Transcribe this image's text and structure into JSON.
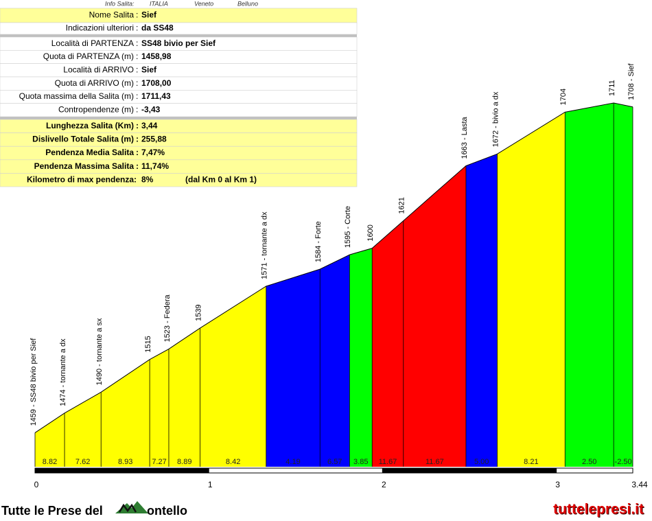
{
  "info_bar": [
    "Info Salita:",
    "ITALIA",
    "Veneto",
    "Belluno"
  ],
  "table": {
    "rows": [
      [
        "Nome Salita",
        ":",
        "Sief"
      ],
      [
        "Indicazioni ulteriori",
        ":",
        "da SS48"
      ],
      [
        "Località di PARTENZA",
        ":",
        "SS48 bivio per Sief"
      ],
      [
        "Quota di PARTENZA (m)",
        ":",
        "1458,98"
      ],
      [
        "Località di ARRIVO",
        ":",
        "Sief"
      ],
      [
        "Quota di ARRIVO (m)",
        ":",
        "1708,00"
      ],
      [
        "Quota massima della Salita (m)",
        ":",
        "1711,43"
      ],
      [
        "Contropendenze (m)",
        ":",
        "-3,43"
      ],
      [
        "Lunghezza Salita (Km)",
        ":",
        "3,44"
      ],
      [
        "Dislivello Totale Salita (m)",
        ":",
        "255,88"
      ],
      [
        "Pendenza Media Salita",
        ":",
        "7,47%"
      ],
      [
        "Pendenza Massima Salita",
        ":",
        "11,74%"
      ],
      [
        "Kilometro di max pendenza:",
        "8%",
        "(dal Km 0 al Km 1)"
      ]
    ]
  },
  "chart_data": {
    "type": "profile",
    "x": [
      0,
      0.17,
      0.38,
      0.66,
      0.77,
      0.95,
      1.33,
      1.64,
      1.81,
      1.94,
      2.12,
      2.48,
      2.66,
      3.05,
      3.33,
      3.44
    ],
    "values": [
      1459,
      1474,
      1490,
      1515,
      1523,
      1539,
      1571,
      1584,
      1595,
      1600,
      1621,
      1663,
      1672,
      1704,
      1711,
      1708
    ],
    "point_labels": [
      "1459 - SS48 bivio per Sief",
      "1474 - tornante a dx",
      "1490 - tornante a sx",
      "1515",
      "1523 - Federa",
      "1539",
      "1571 - tornante a dx",
      "1584 - Forte",
      "1595 - Corte",
      "1600",
      "1621",
      "1663 - Lasta",
      "1672 - bivio a dx",
      "1704",
      "1711",
      "1708 - Sief"
    ],
    "segments": {
      "values": [
        8.82,
        7.62,
        8.93,
        7.27,
        8.89,
        8.42,
        4.19,
        6.57,
        3.85,
        11.67,
        11.67,
        5.0,
        8.21,
        2.5,
        -2.5
      ],
      "value_labels": [
        "8.82",
        "7.62",
        "8.93",
        "7.27",
        "8.89",
        "8.42",
        "4.19",
        "6.57",
        "3.85",
        "11.67",
        "11.67",
        "5.00",
        "8.21",
        "2.50",
        "-2.50"
      ],
      "colors": [
        "#ffff00",
        "#ffff00",
        "#ffff00",
        "#ffff00",
        "#ffff00",
        "#ffff00",
        "#0000ff",
        "#0000ff",
        "#00ff00",
        "#ff0000",
        "#ff0000",
        "#0000ff",
        "#ffff00",
        "#00ff00",
        "#00ff00"
      ]
    },
    "xlim": [
      0,
      3.44
    ],
    "xticks": [
      0,
      1,
      2,
      3,
      3.44
    ],
    "ylim": [
      1433,
      1711
    ]
  },
  "footer": {
    "left": "Tutte le Prese del",
    "left_end": "ontello",
    "right": "tuttelepresi.it"
  }
}
